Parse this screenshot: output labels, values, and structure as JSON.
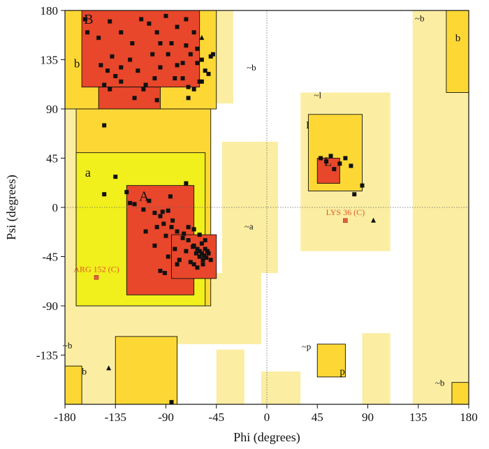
{
  "chart_data": {
    "type": "scatter",
    "title": "",
    "xlabel": "Phi (degrees)",
    "ylabel": "Psi (degrees)",
    "xlim": [
      -180,
      180
    ],
    "ylim": [
      -180,
      180
    ],
    "xticks": [
      -180,
      -135,
      -90,
      -45,
      0,
      45,
      90,
      135,
      180
    ],
    "yticks": [
      180,
      135,
      90,
      45,
      0,
      -45,
      -90,
      -135
    ],
    "tick_labels_x": [
      "-180",
      "-135",
      "-90",
      "-45",
      "0",
      "45",
      "90",
      "135",
      "180"
    ],
    "tick_labels_y": [
      "180",
      "135",
      "90",
      "45",
      "0",
      "-45",
      "-90",
      "-135"
    ],
    "grid": false,
    "reference_lines": [
      {
        "axis": "x",
        "value": 0
      },
      {
        "axis": "y",
        "value": 0
      }
    ],
    "colors": {
      "core": "#e8472b",
      "allowed": "#fdd835",
      "allowed_alpha": "#f1f01c",
      "generous": "#fbeea2",
      "generous_alpha": "#f2eeb2",
      "outline": "#111111",
      "outlier": "#e06040"
    },
    "regions": [
      {
        "level": "generous",
        "rects": [
          [
            -180,
            -90,
            -180,
            180
          ],
          [
            -90,
            -30,
            95,
            180
          ],
          [
            -90,
            -5,
            -125,
            -60
          ],
          [
            -40,
            10,
            -60,
            60
          ],
          [
            -45,
            -20,
            -180,
            -130
          ],
          [
            30,
            110,
            -40,
            105
          ],
          [
            130,
            180,
            -180,
            180
          ],
          [
            -5,
            30,
            -180,
            -150
          ],
          [
            85,
            110,
            -180,
            -115
          ],
          [
            -180,
            -140,
            -180,
            -125
          ]
        ]
      },
      {
        "level": "allowed",
        "rects": [
          [
            -180,
            -45,
            90,
            180
          ],
          [
            -170,
            -50,
            -90,
            90
          ],
          [
            -135,
            -80,
            -180,
            -118
          ],
          [
            -180,
            -165,
            -180,
            -145
          ],
          [
            45,
            70,
            -155,
            -125
          ],
          [
            160,
            180,
            105,
            180
          ],
          [
            165,
            180,
            -180,
            -160
          ],
          [
            37,
            85,
            15,
            85
          ]
        ]
      },
      {
        "level": "allowed_alpha",
        "rects": [
          [
            -170,
            -55,
            -90,
            50
          ]
        ]
      },
      {
        "level": "core",
        "rects": [
          [
            -165,
            -60,
            110,
            180
          ],
          [
            -150,
            -95,
            90,
            110
          ],
          [
            -125,
            -65,
            -80,
            20
          ],
          [
            -85,
            -45,
            -65,
            -25
          ],
          [
            45,
            65,
            22,
            45
          ]
        ]
      }
    ],
    "region_labels": [
      {
        "text": "B",
        "x": -163,
        "y": 168,
        "size": 20
      },
      {
        "text": "b",
        "x": -172,
        "y": 128,
        "size": 17
      },
      {
        "text": "~b",
        "x": -18,
        "y": 125,
        "size": 13
      },
      {
        "text": "a",
        "x": -162,
        "y": 28,
        "size": 18
      },
      {
        "text": "A",
        "x": -114,
        "y": 6,
        "size": 20
      },
      {
        "text": "~a",
        "x": -20,
        "y": -20,
        "size": 13
      },
      {
        "text": "~l",
        "x": 42,
        "y": 100,
        "size": 13
      },
      {
        "text": "l",
        "x": 35,
        "y": 72,
        "size": 15
      },
      {
        "text": "L",
        "x": 51,
        "y": 38,
        "size": 18
      },
      {
        "text": "~b",
        "x": 132,
        "y": 170,
        "size": 13
      },
      {
        "text": "b",
        "x": 168,
        "y": 152,
        "size": 15
      },
      {
        "text": "~b",
        "x": -182,
        "y": -129,
        "size": 13
      },
      {
        "text": "~p",
        "x": 31,
        "y": -130,
        "size": 13
      },
      {
        "text": "p",
        "x": 65,
        "y": -153,
        "size": 15
      },
      {
        "text": "~b",
        "x": 150,
        "y": -163,
        "size": 13
      },
      {
        "text": "b",
        "x": -165,
        "y": -153,
        "size": 14
      }
    ],
    "outliers": [
      {
        "label": "ARG 152 (C)",
        "x": -152,
        "y": -64
      },
      {
        "label": "LYS 36 (C)",
        "x": 70,
        "y": -12
      }
    ],
    "glycine_points": [
      [
        -58,
        155
      ],
      [
        -141,
        -147
      ],
      [
        95,
        -12
      ]
    ],
    "points": [
      [
        -162,
        172
      ],
      [
        -160,
        160
      ],
      [
        -150,
        155
      ],
      [
        -140,
        170
      ],
      [
        -130,
        160
      ],
      [
        -120,
        150
      ],
      [
        -112,
        172
      ],
      [
        -105,
        168
      ],
      [
        -98,
        160
      ],
      [
        -90,
        175
      ],
      [
        -85,
        150
      ],
      [
        -80,
        165
      ],
      [
        -72,
        172
      ],
      [
        -65,
        160
      ],
      [
        -62,
        145
      ],
      [
        -58,
        135
      ],
      [
        -55,
        125
      ],
      [
        -60,
        115
      ],
      [
        -65,
        108
      ],
      [
        -70,
        100
      ],
      [
        -75,
        118
      ],
      [
        -80,
        130
      ],
      [
        -88,
        140
      ],
      [
        -95,
        128
      ],
      [
        -100,
        118
      ],
      [
        -108,
        112
      ],
      [
        -115,
        125
      ],
      [
        -122,
        135
      ],
      [
        -130,
        128
      ],
      [
        -138,
        138
      ],
      [
        -142,
        125
      ],
      [
        -145,
        112
      ],
      [
        -140,
        108
      ],
      [
        -130,
        115
      ],
      [
        -118,
        100
      ],
      [
        -110,
        108
      ],
      [
        -102,
        140
      ],
      [
        -95,
        150
      ],
      [
        -72,
        148
      ],
      [
        -68,
        140
      ],
      [
        -62,
        132
      ],
      [
        -52,
        122
      ],
      [
        -50,
        138
      ],
      [
        -48,
        140
      ],
      [
        -75,
        132
      ],
      [
        -82,
        118
      ],
      [
        -70,
        110
      ],
      [
        -58,
        115
      ],
      [
        -98,
        98
      ],
      [
        -145,
        75
      ],
      [
        -148,
        130
      ],
      [
        -135,
        120
      ],
      [
        -135,
        28
      ],
      [
        -145,
        12
      ],
      [
        -125,
        14
      ],
      [
        -122,
        4
      ],
      [
        -118,
        3
      ],
      [
        -105,
        6
      ],
      [
        -110,
        -2
      ],
      [
        -100,
        -5
      ],
      [
        -95,
        -8
      ],
      [
        -92,
        -15
      ],
      [
        -88,
        -3
      ],
      [
        -85,
        -18
      ],
      [
        -80,
        -22
      ],
      [
        -75,
        -28
      ],
      [
        -70,
        -30
      ],
      [
        -65,
        -35
      ],
      [
        -62,
        -38
      ],
      [
        -60,
        -40
      ],
      [
        -58,
        -42
      ],
      [
        -56,
        -44
      ],
      [
        -54,
        -46
      ],
      [
        -57,
        -48
      ],
      [
        -60,
        -45
      ],
      [
        -63,
        -42
      ],
      [
        -66,
        -36
      ],
      [
        -72,
        -40
      ],
      [
        -78,
        -48
      ],
      [
        -82,
        -38
      ],
      [
        -88,
        -45
      ],
      [
        -95,
        -58
      ],
      [
        -100,
        -35
      ],
      [
        -108,
        -22
      ],
      [
        -90,
        -26
      ],
      [
        -98,
        -18
      ],
      [
        -84,
        -12
      ],
      [
        -93,
        -4
      ],
      [
        -86,
        10
      ],
      [
        -91,
        -60
      ],
      [
        -72,
        22
      ],
      [
        -80,
        -52
      ],
      [
        -65,
        -52
      ],
      [
        -55,
        -38
      ],
      [
        -52,
        -42
      ],
      [
        -50,
        -48
      ],
      [
        -57,
        -52
      ],
      [
        -62,
        -55
      ],
      [
        -68,
        -50
      ],
      [
        -74,
        -24
      ],
      [
        -70,
        -18
      ],
      [
        -65,
        -20
      ],
      [
        -60,
        -25
      ],
      [
        -55,
        -30
      ],
      [
        -58,
        -33
      ],
      [
        -53,
        -40
      ],
      [
        48,
        45
      ],
      [
        53,
        42
      ],
      [
        57,
        47
      ],
      [
        60,
        35
      ],
      [
        65,
        40
      ],
      [
        70,
        45
      ],
      [
        75,
        38
      ],
      [
        78,
        12
      ],
      [
        85,
        20
      ],
      [
        -85,
        -178
      ]
    ]
  }
}
